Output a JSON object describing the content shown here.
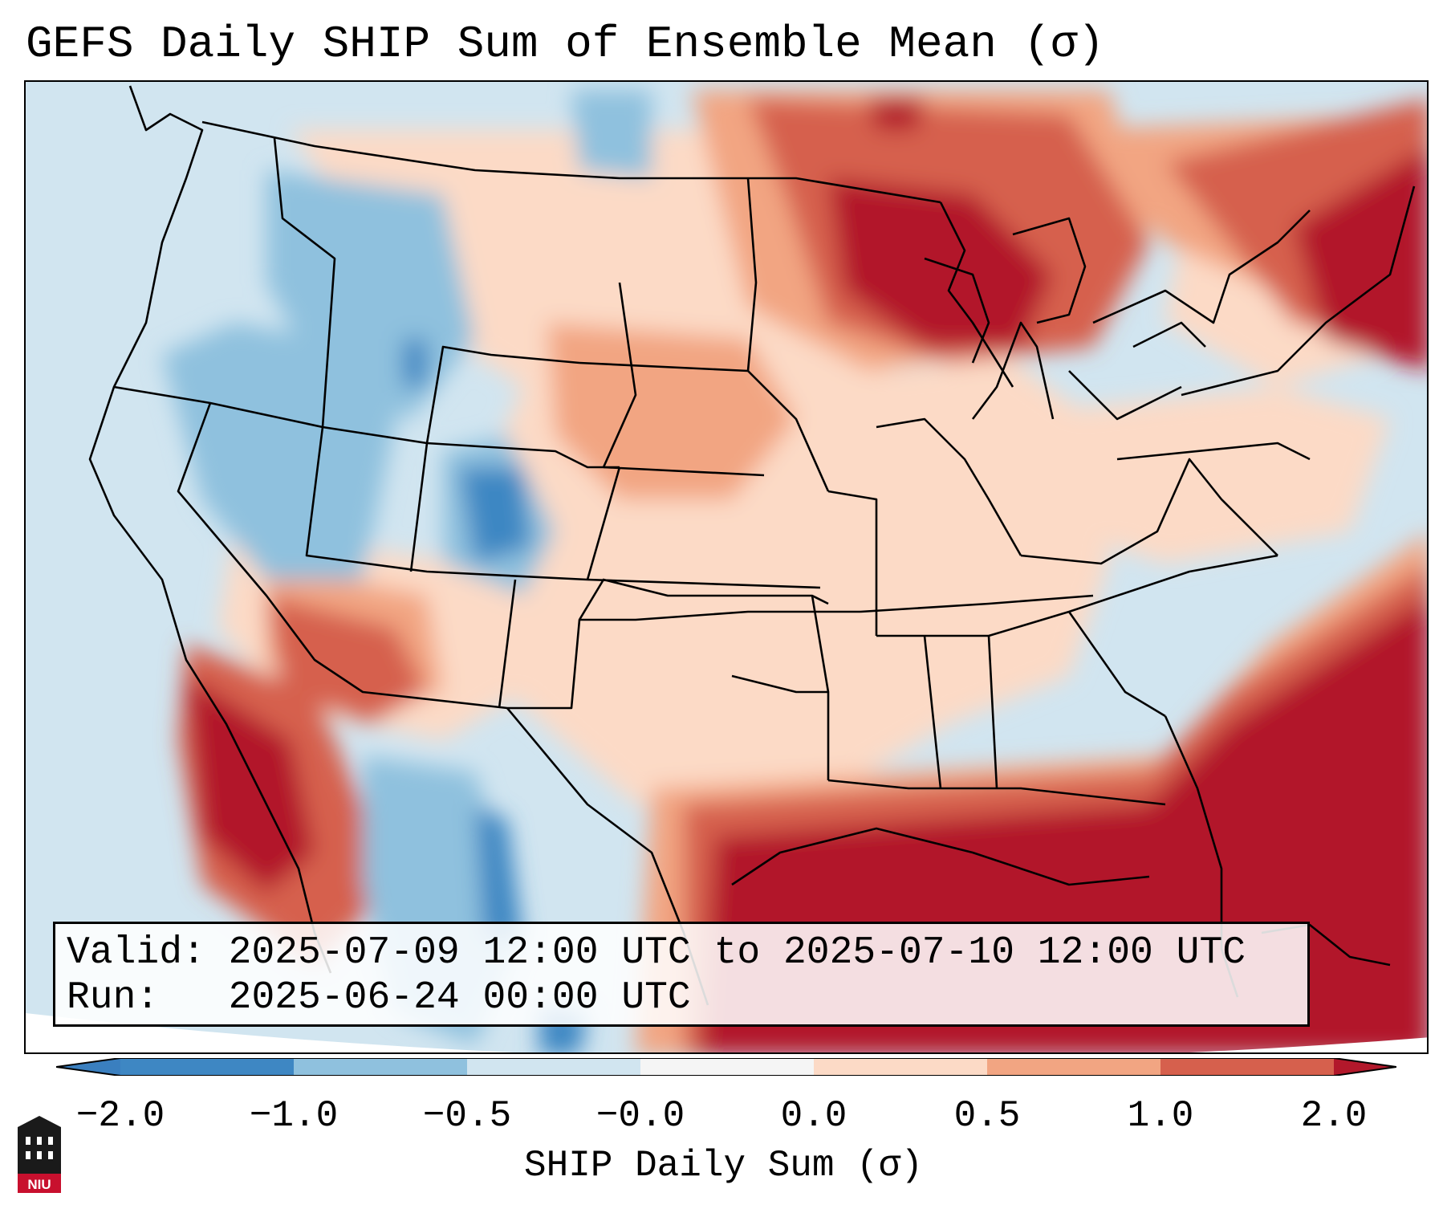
{
  "title": "GEFS Daily SHIP Sum of Ensemble Mean (σ)",
  "info": {
    "valid_label": "Valid:",
    "valid_value": "2025-07-09 12:00 UTC to 2025-07-10 12:00 UTC",
    "run_label": "Run:",
    "run_value": "2025-06-24 00:00 UTC"
  },
  "colorbar": {
    "label": "SHIP Daily Sum (σ)",
    "ticks": [
      "−2.0",
      "−1.0",
      "−0.5",
      "−0.0",
      "0.0",
      "0.5",
      "1.0",
      "2.0"
    ],
    "colors": {
      "below_min": "#3a7fbf",
      "b1": "#3e87c3",
      "b2": "#8fc1de",
      "b3": "#d1e5f0",
      "b4": "#f5f5f5",
      "b5": "#fcdac6",
      "b6": "#f2a582",
      "b7": "#d6604d",
      "above_max": "#b2182b"
    }
  },
  "logo": {
    "text": "NIU",
    "icon": "niu-logo-icon"
  }
}
